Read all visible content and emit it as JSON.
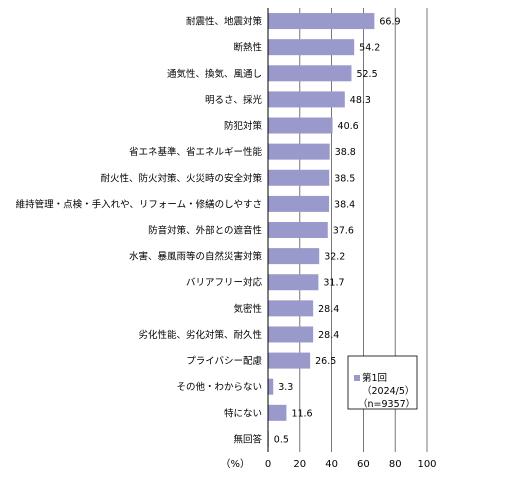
{
  "chart_data": {
    "type": "bar",
    "orientation": "horizontal",
    "categories": [
      "耐震性、地震対策",
      "断熱性",
      "通気性、換気、風通し",
      "明るさ、採光",
      "防犯対策",
      "省エネ基準、省エネルギー性能",
      "耐火性、防火対策、火災時の安全対策",
      "維持管理・点検・手入れや、リフォーム・修繕のしやすさ",
      "防音対策、外部との遮音性",
      "水害、暴風雨等の自然災害対策",
      "バリアフリー対応",
      "気密性",
      "劣化性能、劣化対策、耐久性",
      "プライバシー配慮",
      "その他・わからない",
      "特にない",
      "無回答"
    ],
    "series": [
      {
        "name": "第1回（2024/5）（n=9357）",
        "values": [
          66.9,
          54.2,
          52.5,
          48.3,
          40.6,
          38.8,
          38.5,
          38.4,
          37.6,
          32.2,
          31.7,
          28.4,
          28.4,
          26.5,
          3.3,
          11.6,
          0.5
        ]
      }
    ],
    "value_labels": [
      "66.9",
      "54.2",
      "52.5",
      "48.3",
      "40.6",
      "38.8",
      "38.5",
      "38.4",
      "37.6",
      "32.2",
      "31.7",
      "28.4",
      "28.4",
      "26.5",
      "3.3",
      "11.6",
      "0.5"
    ],
    "xlim": [
      0,
      100
    ],
    "xticks": [
      0,
      20,
      40,
      60,
      80,
      100
    ],
    "xtick_labels": [
      "0",
      "20",
      "40",
      "60",
      "80",
      "100"
    ],
    "xlabel": "（%）",
    "legend": {
      "placement": "lower-right",
      "lines": [
        "第1回",
        "（2024/5）",
        "（n=9357）"
      ]
    },
    "grid": true,
    "bar_color": "#9999cc"
  }
}
